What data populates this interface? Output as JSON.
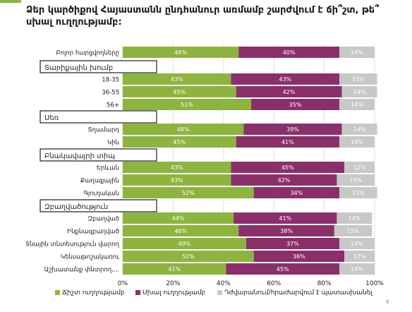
{
  "title": "Ձեր կարծիքով Հայաստանն ընդհանուր առմամբ շարժվում է ճի՞շտ, թե՞ սխալ ուղղությամբ:",
  "page_number": "6",
  "colors": {
    "green": "#8db43e",
    "purple": "#8b2f6a",
    "gray": "#c8c8c8",
    "header_border": "#1a1a1a"
  },
  "legend": [
    {
      "label": "Ճիշտ ուղղությամբ",
      "color": "#8db43e"
    },
    {
      "label": "Սխալ ուղղությամբ",
      "color": "#8b2f6a"
    },
    {
      "label": "Դժվարանում/հրաժարվում է պատասխանել",
      "color": "#c8c8c8"
    }
  ],
  "chart_data": {
    "type": "bar",
    "orientation": "horizontal",
    "stacked": true,
    "xlim": [
      0,
      100
    ],
    "x_ticks": [
      "0%",
      "20%",
      "40%",
      "60%",
      "80%",
      "100%"
    ],
    "series": [
      {
        "name": "Ճիշտ ուղղությամբ"
      },
      {
        "name": "Սխալ ուղղությամբ"
      },
      {
        "name": "Դժվարանում/հրաժարվում է պատասխանել"
      }
    ],
    "rows": [
      {
        "kind": "bar",
        "label": "Բոլոր հարցվողները",
        "values": [
          46,
          40,
          14
        ]
      },
      {
        "kind": "header",
        "label": "Տարիքային խումբ"
      },
      {
        "kind": "bar",
        "label": "18-35",
        "values": [
          43,
          43,
          15
        ]
      },
      {
        "kind": "bar",
        "label": "36-55",
        "values": [
          45,
          42,
          14
        ]
      },
      {
        "kind": "bar",
        "label": "56+",
        "values": [
          51,
          35,
          14
        ]
      },
      {
        "kind": "header",
        "label": "Սեռ"
      },
      {
        "kind": "bar",
        "label": "Տղամարդ",
        "values": [
          48,
          39,
          14
        ]
      },
      {
        "kind": "bar",
        "label": "Կին",
        "values": [
          45,
          41,
          14
        ]
      },
      {
        "kind": "header",
        "label": "Բնակավայրի տիպ"
      },
      {
        "kind": "bar",
        "label": "Երևան",
        "values": [
          43,
          45,
          12
        ]
      },
      {
        "kind": "bar",
        "label": "Քաղաքային",
        "values": [
          43,
          42,
          15
        ]
      },
      {
        "kind": "bar",
        "label": "Գյուղական",
        "values": [
          52,
          34,
          15
        ]
      },
      {
        "kind": "header",
        "label": "Զբաղվածություն"
      },
      {
        "kind": "bar",
        "label": "Զբաղված",
        "values": [
          44,
          41,
          14
        ]
      },
      {
        "kind": "bar",
        "label": "Ինքնազբաղված",
        "values": [
          46,
          38,
          15
        ]
      },
      {
        "kind": "bar",
        "label": "Տնային տնտեսություն վարող",
        "values": [
          49,
          37,
          14
        ]
      },
      {
        "kind": "bar",
        "label": "Կենսաթոշակառու",
        "values": [
          52,
          36,
          12
        ]
      },
      {
        "kind": "bar",
        "label": "Աշխատանք փնտրող,...",
        "values": [
          41,
          45,
          14
        ]
      }
    ]
  }
}
